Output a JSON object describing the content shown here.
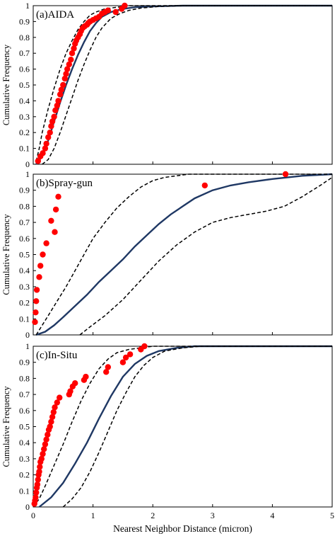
{
  "chart_data": [
    {
      "type": "line",
      "panel_label": "(a)AIDA",
      "ylabel": "Cumulative Frequency",
      "xlim": [
        0,
        5
      ],
      "ylim": [
        0,
        1
      ],
      "yticks": [
        "0",
        "0.1",
        "0.2",
        "0.3",
        "0.4",
        "0.5",
        "0.6",
        "0.7",
        "0.8",
        "0.9",
        "1"
      ],
      "colors": {
        "model": "#1f3864",
        "envelope": "#000000",
        "observed": "#ff0000"
      },
      "series": [
        {
          "style": "solid",
          "x": [
            0.05,
            0.15,
            0.25,
            0.35,
            0.45,
            0.55,
            0.65,
            0.75,
            0.85,
            0.95,
            1.05,
            1.15,
            1.3,
            1.5,
            1.7,
            2.0,
            2.5,
            3.0,
            5.0
          ],
          "y": [
            0.0,
            0.05,
            0.15,
            0.27,
            0.39,
            0.5,
            0.6,
            0.69,
            0.77,
            0.84,
            0.89,
            0.93,
            0.96,
            0.98,
            0.99,
            0.995,
            1.0,
            1.0,
            1.0
          ]
        },
        {
          "style": "dashed",
          "x": [
            0.05,
            0.1,
            0.15,
            0.25,
            0.35,
            0.45,
            0.55,
            0.65,
            0.75,
            0.85,
            0.95,
            1.05,
            1.2,
            1.4,
            1.6,
            2.0,
            2.5,
            5.0
          ],
          "y": [
            0.02,
            0.1,
            0.2,
            0.35,
            0.48,
            0.6,
            0.7,
            0.78,
            0.85,
            0.9,
            0.94,
            0.96,
            0.98,
            0.99,
            1.0,
            1.0,
            1.0,
            1.0
          ]
        },
        {
          "style": "dashed",
          "x": [
            0.15,
            0.25,
            0.35,
            0.45,
            0.55,
            0.65,
            0.75,
            0.85,
            0.95,
            1.05,
            1.15,
            1.3,
            1.45,
            1.6,
            1.8,
            2.1,
            2.5,
            3.0,
            5.0
          ],
          "y": [
            0.0,
            0.03,
            0.1,
            0.2,
            0.31,
            0.42,
            0.53,
            0.63,
            0.72,
            0.8,
            0.86,
            0.92,
            0.95,
            0.97,
            0.985,
            0.995,
            1.0,
            1.0,
            1.0
          ]
        }
      ],
      "points": {
        "x": [
          0.08,
          0.12,
          0.16,
          0.2,
          0.22,
          0.25,
          0.28,
          0.3,
          0.32,
          0.35,
          0.37,
          0.4,
          0.42,
          0.45,
          0.47,
          0.5,
          0.53,
          0.55,
          0.57,
          0.6,
          0.63,
          0.65,
          0.68,
          0.7,
          0.72,
          0.75,
          0.78,
          0.8,
          0.83,
          0.86,
          0.9,
          0.92,
          0.95,
          1.0,
          1.05,
          1.1,
          1.15,
          1.2,
          1.25,
          1.38,
          1.48,
          1.53
        ],
        "y": [
          0.02,
          0.05,
          0.07,
          0.1,
          0.13,
          0.17,
          0.2,
          0.24,
          0.27,
          0.3,
          0.34,
          0.37,
          0.4,
          0.44,
          0.47,
          0.5,
          0.54,
          0.57,
          0.6,
          0.63,
          0.66,
          0.7,
          0.73,
          0.76,
          0.78,
          0.8,
          0.82,
          0.84,
          0.86,
          0.87,
          0.88,
          0.89,
          0.9,
          0.91,
          0.92,
          0.93,
          0.95,
          0.96,
          0.97,
          0.96,
          0.98,
          1.0
        ]
      }
    },
    {
      "type": "line",
      "panel_label": "(b)Spray-gun",
      "ylabel": "Cumulative Frequency",
      "xlim": [
        0,
        5
      ],
      "ylim": [
        0,
        1
      ],
      "yticks": [
        "0",
        "0.1",
        "0.2",
        "0.3",
        "0.4",
        "0.5",
        "0.6",
        "0.7",
        "0.8",
        "0.9",
        "1"
      ],
      "colors": {
        "model": "#1f3864",
        "envelope": "#000000",
        "observed": "#ff0000"
      },
      "series": [
        {
          "style": "solid",
          "x": [
            0.05,
            0.2,
            0.35,
            0.5,
            0.7,
            0.9,
            1.1,
            1.3,
            1.5,
            1.7,
            1.9,
            2.1,
            2.3,
            2.5,
            2.7,
            3.0,
            3.3,
            3.6,
            4.0,
            4.5,
            5.0
          ],
          "y": [
            0.0,
            0.02,
            0.06,
            0.11,
            0.18,
            0.25,
            0.33,
            0.4,
            0.47,
            0.55,
            0.62,
            0.69,
            0.75,
            0.8,
            0.85,
            0.9,
            0.93,
            0.95,
            0.97,
            0.99,
            1.0
          ]
        },
        {
          "style": "dashed",
          "x": [
            0.05,
            0.15,
            0.25,
            0.4,
            0.55,
            0.7,
            0.85,
            1.0,
            1.2,
            1.4,
            1.6,
            1.8,
            2.0,
            2.2,
            2.4,
            2.6,
            2.9,
            5.0
          ],
          "y": [
            0.0,
            0.06,
            0.12,
            0.21,
            0.3,
            0.4,
            0.5,
            0.6,
            0.7,
            0.79,
            0.86,
            0.92,
            0.96,
            0.98,
            0.99,
            1.0,
            1.0,
            1.0
          ]
        },
        {
          "style": "dashed",
          "x": [
            0.78,
            0.95,
            1.2,
            1.5,
            1.8,
            2.1,
            2.4,
            2.7,
            3.0,
            3.3,
            3.6,
            3.9,
            4.2,
            4.5,
            4.8,
            5.0
          ],
          "y": [
            0.0,
            0.05,
            0.12,
            0.22,
            0.34,
            0.46,
            0.56,
            0.64,
            0.7,
            0.73,
            0.75,
            0.77,
            0.8,
            0.86,
            0.93,
            0.98
          ]
        }
      ],
      "points": {
        "x": [
          0.03,
          0.04,
          0.05,
          0.06,
          0.1,
          0.12,
          0.16,
          0.22,
          0.3,
          0.36,
          0.38,
          0.42,
          2.87,
          4.22
        ],
        "y": [
          0.08,
          0.14,
          0.21,
          0.28,
          0.36,
          0.43,
          0.5,
          0.57,
          0.71,
          0.64,
          0.78,
          0.86,
          0.93,
          1.0
        ]
      }
    },
    {
      "type": "line",
      "panel_label": "(c)In-Situ",
      "ylabel": "Cumulative Frequency",
      "xlabel": "Nearest Neighbor Distance (micron)",
      "xticks": [
        "0",
        "1",
        "2",
        "3",
        "4",
        "5"
      ],
      "xlim": [
        0,
        5
      ],
      "ylim": [
        0,
        1
      ],
      "yticks": [
        "0",
        "0.1",
        "0.2",
        "0.3",
        "0.4",
        "0.5",
        "0.6",
        "0.7",
        "0.8",
        "0.9",
        "1"
      ],
      "colors": {
        "model": "#1f3864",
        "envelope": "#000000",
        "observed": "#ff0000"
      },
      "series": [
        {
          "style": "solid",
          "x": [
            0.1,
            0.3,
            0.5,
            0.7,
            0.9,
            1.1,
            1.3,
            1.5,
            1.7,
            1.9,
            2.1,
            2.4,
            2.7,
            3.0,
            3.5,
            5.0
          ],
          "y": [
            0.0,
            0.06,
            0.15,
            0.27,
            0.4,
            0.55,
            0.69,
            0.81,
            0.89,
            0.94,
            0.97,
            0.99,
            1.0,
            1.0,
            1.0,
            1.0
          ]
        },
        {
          "style": "dashed",
          "x": [
            0.0,
            0.1,
            0.2,
            0.35,
            0.5,
            0.65,
            0.8,
            0.95,
            1.1,
            1.25,
            1.4,
            1.6,
            1.8,
            2.0,
            2.3,
            5.0
          ],
          "y": [
            0.0,
            0.05,
            0.13,
            0.26,
            0.39,
            0.53,
            0.66,
            0.77,
            0.86,
            0.92,
            0.96,
            0.98,
            0.99,
            1.0,
            1.0,
            1.0
          ]
        },
        {
          "style": "dashed",
          "x": [
            0.5,
            0.65,
            0.8,
            0.95,
            1.1,
            1.25,
            1.4,
            1.55,
            1.7,
            1.85,
            2.0,
            2.2,
            2.5,
            2.8,
            3.2,
            5.0
          ],
          "y": [
            0.0,
            0.05,
            0.12,
            0.22,
            0.34,
            0.47,
            0.6,
            0.71,
            0.81,
            0.88,
            0.93,
            0.97,
            0.99,
            1.0,
            1.0,
            1.0
          ]
        }
      ],
      "points": {
        "x": [
          0.02,
          0.03,
          0.04,
          0.05,
          0.06,
          0.07,
          0.08,
          0.09,
          0.1,
          0.11,
          0.12,
          0.14,
          0.16,
          0.18,
          0.2,
          0.22,
          0.24,
          0.26,
          0.28,
          0.3,
          0.32,
          0.34,
          0.36,
          0.4,
          0.44,
          0.6,
          0.62,
          0.66,
          0.7,
          0.85,
          0.88,
          1.22,
          1.25,
          1.5,
          1.55,
          1.62,
          1.8,
          1.86
        ],
        "y": [
          0.02,
          0.04,
          0.06,
          0.09,
          0.12,
          0.14,
          0.17,
          0.2,
          0.22,
          0.25,
          0.28,
          0.3,
          0.33,
          0.36,
          0.39,
          0.42,
          0.45,
          0.48,
          0.5,
          0.53,
          0.56,
          0.59,
          0.62,
          0.65,
          0.68,
          0.7,
          0.72,
          0.75,
          0.77,
          0.79,
          0.81,
          0.84,
          0.87,
          0.9,
          0.93,
          0.95,
          0.98,
          1.0
        ]
      }
    }
  ]
}
